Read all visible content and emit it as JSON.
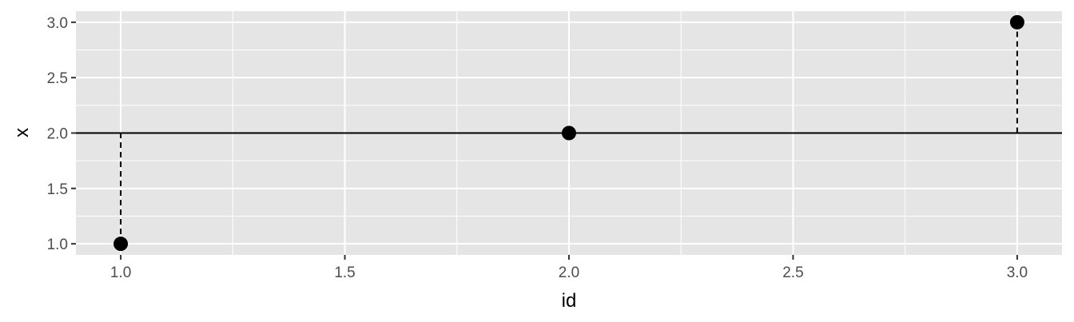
{
  "chart_data": {
    "type": "scatter",
    "title": "",
    "xlabel": "id",
    "ylabel": "x",
    "xlim": [
      0.9,
      3.1
    ],
    "ylim": [
      0.9,
      3.1
    ],
    "x_ticks": [
      1.0,
      1.5,
      2.0,
      2.5,
      3.0
    ],
    "x_tick_labels": [
      "1.0",
      "1.5",
      "2.0",
      "2.5",
      "3.0"
    ],
    "y_ticks": [
      1.0,
      1.5,
      2.0,
      2.5,
      3.0
    ],
    "y_tick_labels": [
      "1.0",
      "1.5",
      "2.0",
      "2.5",
      "3.0"
    ],
    "grid": true,
    "reference_line": {
      "y": 2.0,
      "style": "solid"
    },
    "points": [
      {
        "x": 1,
        "y": 1
      },
      {
        "x": 2,
        "y": 2
      },
      {
        "x": 3,
        "y": 3
      }
    ],
    "segments": [
      {
        "x": 1,
        "y_from": 1,
        "y_to": 2,
        "style": "dashed"
      },
      {
        "x": 3,
        "y_from": 2,
        "y_to": 3,
        "style": "dashed"
      }
    ],
    "colors": {
      "panel": "#e5e5e5",
      "grid": "#ffffff",
      "point": "#000000",
      "tick_text": "#4d4d4d",
      "axis_title": "#000000"
    }
  }
}
